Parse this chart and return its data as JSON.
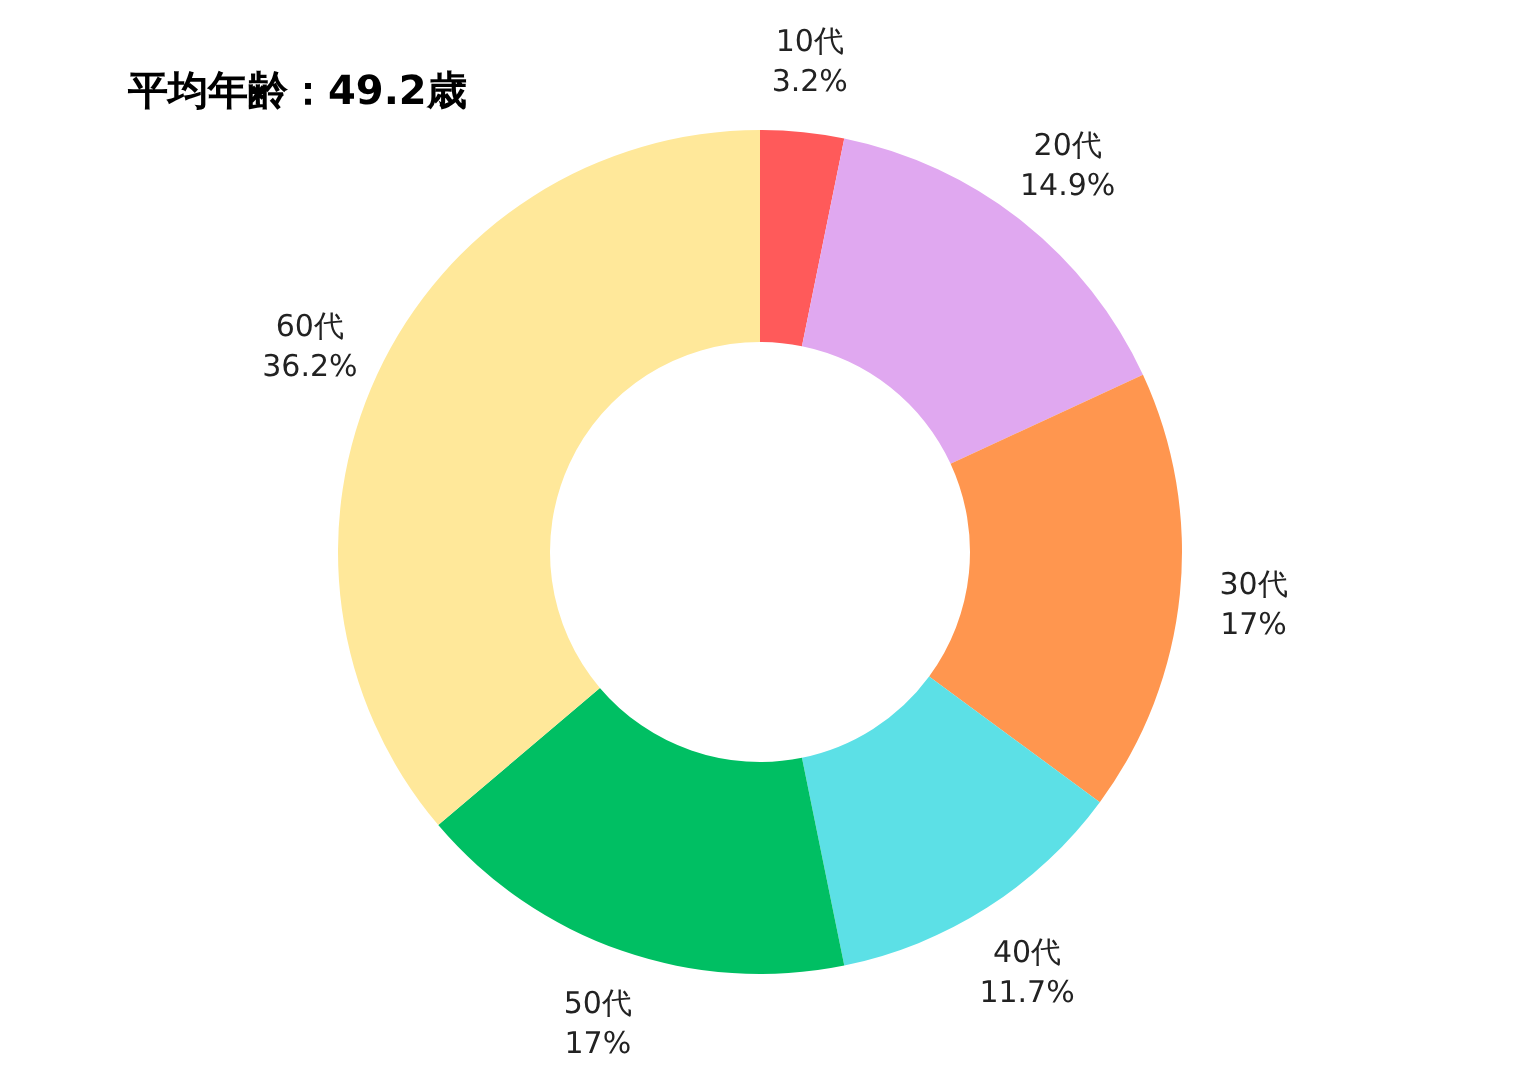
{
  "chart_data": {
    "type": "donut",
    "title": "平均年齢：49.2歳",
    "categories": [
      "10代",
      "20代",
      "30代",
      "40代",
      "50代",
      "60代"
    ],
    "values": [
      3.2,
      14.9,
      17,
      11.7,
      17,
      36.2
    ],
    "value_labels": [
      "3.2%",
      "14.9%",
      "17%",
      "11.7%",
      "17%",
      "36.2%"
    ],
    "colors": [
      "#ff5a5a",
      "#e0a8f0",
      "#ff964f",
      "#5ce0e6",
      "#00bf63",
      "#ffe89a"
    ]
  }
}
